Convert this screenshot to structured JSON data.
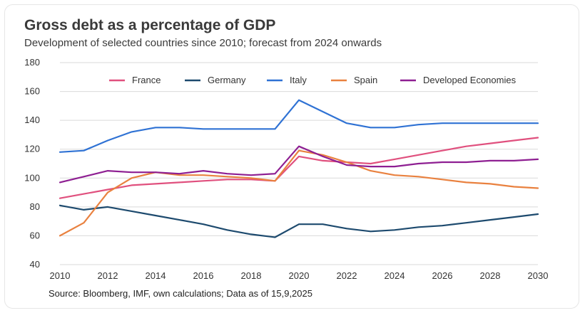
{
  "header": {
    "title": "Gross debt as a percentage of GDP",
    "subtitle": "Development of selected countries since 2010; forecast from 2024 onwards"
  },
  "footer": {
    "source": "Source: Bloomberg, IMF, own calculations; Data as of 15,9,2025"
  },
  "chart_data": {
    "type": "line",
    "title": "Gross debt as a percentage of GDP",
    "subtitle": "Development of selected countries since 2010; forecast from 2024 onwards",
    "xlabel": "",
    "ylabel": "",
    "x": [
      2010,
      2011,
      2012,
      2013,
      2014,
      2015,
      2016,
      2017,
      2018,
      2019,
      2020,
      2021,
      2022,
      2023,
      2024,
      2025,
      2026,
      2027,
      2028,
      2029,
      2030
    ],
    "x_ticks": [
      "2010",
      "2012",
      "2014",
      "2016",
      "2018",
      "2020",
      "2022",
      "2024",
      "2026",
      "2028",
      "2030"
    ],
    "xlim": [
      2010,
      2030
    ],
    "ylim": [
      40,
      180
    ],
    "y_ticks": [
      "40",
      "60",
      "80",
      "100",
      "120",
      "140",
      "160",
      "180"
    ],
    "grid": "horizontal",
    "legend_position": "top",
    "series": [
      {
        "name": "France",
        "color": "#e0507e",
        "values": [
          86,
          89,
          92,
          95,
          96,
          97,
          98,
          99,
          99,
          98,
          115,
          112,
          111,
          110,
          113,
          116,
          119,
          122,
          124,
          126,
          128
        ]
      },
      {
        "name": "Germany",
        "color": "#1d4a6e",
        "values": [
          81,
          78,
          80,
          77,
          74,
          71,
          68,
          64,
          61,
          59,
          68,
          68,
          65,
          63,
          64,
          66,
          67,
          69,
          71,
          73,
          75
        ]
      },
      {
        "name": "Italy",
        "color": "#2f72d4",
        "values": [
          118,
          119,
          126,
          132,
          135,
          135,
          134,
          134,
          134,
          134,
          154,
          146,
          138,
          135,
          135,
          137,
          138,
          138,
          138,
          138,
          138
        ]
      },
      {
        "name": "Spain",
        "color": "#e9813f",
        "values": [
          60,
          69,
          90,
          100,
          104,
          102,
          102,
          101,
          100,
          98,
          119,
          116,
          111,
          105,
          102,
          101,
          99,
          97,
          96,
          94,
          93
        ]
      },
      {
        "name": "Developed Economies",
        "color": "#8e1f92",
        "values": [
          97,
          101,
          105,
          104,
          104,
          103,
          105,
          103,
          102,
          103,
          122,
          115,
          109,
          108,
          108,
          110,
          111,
          111,
          112,
          112,
          113
        ]
      }
    ]
  }
}
